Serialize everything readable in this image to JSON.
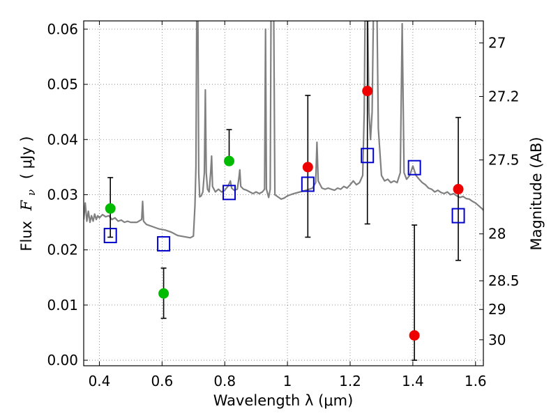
{
  "chart_data": {
    "type": "scatter",
    "xlabel": "Wavelength  λ (μm)",
    "ylabel_prefix": "Flux",
    "ylabel_symbol": "F",
    "ylabel_subscript": "ν",
    "ylabel_unit": "( μJy )",
    "y2label": "Magnitude (AB)",
    "xlim": [
      0.35,
      1.625
    ],
    "ylim": [
      -0.001,
      0.0615
    ],
    "grid": true,
    "xticks": [
      {
        "value": 0.4,
        "label": "0.4"
      },
      {
        "value": 0.6,
        "label": "0.6"
      },
      {
        "value": 0.8,
        "label": "0.8"
      },
      {
        "value": 1.0,
        "label": "1"
      },
      {
        "value": 1.2,
        "label": "1.2"
      },
      {
        "value": 1.4,
        "label": "1.4"
      },
      {
        "value": 1.6,
        "label": "1.6"
      }
    ],
    "yticks": [
      {
        "value": 0.0,
        "label": "0.00"
      },
      {
        "value": 0.01,
        "label": "0.01"
      },
      {
        "value": 0.02,
        "label": "0.02"
      },
      {
        "value": 0.03,
        "label": "0.03"
      },
      {
        "value": 0.04,
        "label": "0.04"
      },
      {
        "value": 0.05,
        "label": "0.05"
      },
      {
        "value": 0.06,
        "label": "0.06"
      }
    ],
    "y2ticks": [
      {
        "flux": 0.0575,
        "label": "27"
      },
      {
        "flux": 0.0478,
        "label": "27.2"
      },
      {
        "flux": 0.0363,
        "label": "27.5"
      },
      {
        "flux": 0.0229,
        "label": "28"
      },
      {
        "flux": 0.0144,
        "label": "28.5"
      },
      {
        "flux": 0.0092,
        "label": "29"
      },
      {
        "flux": 0.0037,
        "label": "30"
      }
    ],
    "series": [
      {
        "name": "detections (green)",
        "color": "#00bb00",
        "points": [
          {
            "x": 0.435,
            "y": 0.0275,
            "err_lo": 0.0052,
            "err_hi": 0.0056
          },
          {
            "x": 0.605,
            "y": 0.0121,
            "err_lo": 0.0045,
            "err_hi": 0.0046
          },
          {
            "x": 0.814,
            "y": 0.0361,
            "err_lo": 0.0,
            "err_hi": 0.0057
          }
        ]
      },
      {
        "name": "measurements (red)",
        "color": "#ee0000",
        "points": [
          {
            "x": 1.065,
            "y": 0.035,
            "err_lo": 0.0127,
            "err_hi": 0.013
          },
          {
            "x": 1.255,
            "y": 0.0488,
            "err_lo": 0.0241,
            "err_hi": 0.0127
          },
          {
            "x": 1.405,
            "y": 0.0045,
            "err_lo": 0.0045,
            "err_hi": 0.02
          },
          {
            "x": 1.545,
            "y": 0.031,
            "err_lo": 0.0129,
            "err_hi": 0.013
          }
        ]
      },
      {
        "name": "model photometry (blue squares)",
        "color": "#0000cc",
        "points": [
          {
            "x": 0.435,
            "y": 0.0226
          },
          {
            "x": 0.605,
            "y": 0.0211
          },
          {
            "x": 0.814,
            "y": 0.0304
          },
          {
            "x": 1.065,
            "y": 0.0319
          },
          {
            "x": 1.255,
            "y": 0.0371
          },
          {
            "x": 1.405,
            "y": 0.0349
          },
          {
            "x": 1.545,
            "y": 0.0262
          }
        ]
      }
    ],
    "spectrum": {
      "name": "model spectrum",
      "color": "#808080",
      "points": [
        [
          0.35,
          0.0255
        ],
        [
          0.355,
          0.0285
        ],
        [
          0.36,
          0.0252
        ],
        [
          0.365,
          0.027
        ],
        [
          0.37,
          0.025
        ],
        [
          0.375,
          0.0262
        ],
        [
          0.38,
          0.0252
        ],
        [
          0.385,
          0.0265
        ],
        [
          0.39,
          0.0255
        ],
        [
          0.395,
          0.0262
        ],
        [
          0.4,
          0.0258
        ],
        [
          0.41,
          0.0264
        ],
        [
          0.42,
          0.026
        ],
        [
          0.43,
          0.0262
        ],
        [
          0.44,
          0.0255
        ],
        [
          0.45,
          0.0258
        ],
        [
          0.46,
          0.0252
        ],
        [
          0.47,
          0.0254
        ],
        [
          0.48,
          0.025
        ],
        [
          0.49,
          0.0252
        ],
        [
          0.5,
          0.025
        ],
        [
          0.52,
          0.025
        ],
        [
          0.535,
          0.0255
        ],
        [
          0.538,
          0.0288
        ],
        [
          0.541,
          0.0252
        ],
        [
          0.55,
          0.0246
        ],
        [
          0.57,
          0.0242
        ],
        [
          0.59,
          0.0238
        ],
        [
          0.61,
          0.0236
        ],
        [
          0.63,
          0.0232
        ],
        [
          0.65,
          0.0226
        ],
        [
          0.67,
          0.0224
        ],
        [
          0.69,
          0.0222
        ],
        [
          0.7,
          0.0225
        ],
        [
          0.705,
          0.028
        ],
        [
          0.708,
          0.035
        ],
        [
          0.711,
          0.066
        ],
        [
          0.714,
          0.066
        ],
        [
          0.717,
          0.034
        ],
        [
          0.72,
          0.0296
        ],
        [
          0.725,
          0.0298
        ],
        [
          0.73,
          0.0305
        ],
        [
          0.735,
          0.034
        ],
        [
          0.738,
          0.049
        ],
        [
          0.741,
          0.034
        ],
        [
          0.745,
          0.031
        ],
        [
          0.75,
          0.0305
        ],
        [
          0.755,
          0.034
        ],
        [
          0.758,
          0.037
        ],
        [
          0.761,
          0.0315
        ],
        [
          0.77,
          0.0305
        ],
        [
          0.78,
          0.031
        ],
        [
          0.79,
          0.0305
        ],
        [
          0.8,
          0.0308
        ],
        [
          0.81,
          0.0315
        ],
        [
          0.818,
          0.0325
        ],
        [
          0.822,
          0.0312
        ],
        [
          0.83,
          0.0308
        ],
        [
          0.84,
          0.031
        ],
        [
          0.845,
          0.033
        ],
        [
          0.848,
          0.0345
        ],
        [
          0.851,
          0.0315
        ],
        [
          0.86,
          0.031
        ],
        [
          0.87,
          0.0308
        ],
        [
          0.88,
          0.0305
        ],
        [
          0.89,
          0.0302
        ],
        [
          0.9,
          0.0305
        ],
        [
          0.91,
          0.0302
        ],
        [
          0.92,
          0.0305
        ],
        [
          0.927,
          0.031
        ],
        [
          0.93,
          0.06
        ],
        [
          0.933,
          0.031
        ],
        [
          0.94,
          0.0295
        ],
        [
          0.945,
          0.031
        ],
        [
          0.948,
          0.066
        ],
        [
          0.953,
          0.066
        ],
        [
          0.956,
          0.066
        ],
        [
          0.96,
          0.03
        ],
        [
          0.97,
          0.0296
        ],
        [
          0.98,
          0.0292
        ],
        [
          0.99,
          0.0294
        ],
        [
          1.0,
          0.0298
        ],
        [
          1.02,
          0.0302
        ],
        [
          1.04,
          0.0305
        ],
        [
          1.06,
          0.0308
        ],
        [
          1.08,
          0.0312
        ],
        [
          1.09,
          0.0322
        ],
        [
          1.094,
          0.0395
        ],
        [
          1.098,
          0.0325
        ],
        [
          1.11,
          0.0312
        ],
        [
          1.12,
          0.031
        ],
        [
          1.13,
          0.0312
        ],
        [
          1.14,
          0.031
        ],
        [
          1.15,
          0.0308
        ],
        [
          1.16,
          0.0312
        ],
        [
          1.17,
          0.031
        ],
        [
          1.18,
          0.0315
        ],
        [
          1.19,
          0.0312
        ],
        [
          1.2,
          0.0318
        ],
        [
          1.21,
          0.0325
        ],
        [
          1.22,
          0.0318
        ],
        [
          1.23,
          0.0322
        ],
        [
          1.24,
          0.0335
        ],
        [
          1.245,
          0.045
        ],
        [
          1.248,
          0.066
        ],
        [
          1.255,
          0.066
        ],
        [
          1.26,
          0.045
        ],
        [
          1.265,
          0.04
        ],
        [
          1.27,
          0.045
        ],
        [
          1.275,
          0.066
        ],
        [
          1.285,
          0.066
        ],
        [
          1.29,
          0.042
        ],
        [
          1.3,
          0.0335
        ],
        [
          1.31,
          0.0325
        ],
        [
          1.32,
          0.0328
        ],
        [
          1.33,
          0.0322
        ],
        [
          1.34,
          0.0325
        ],
        [
          1.35,
          0.0322
        ],
        [
          1.36,
          0.034
        ],
        [
          1.366,
          0.061
        ],
        [
          1.372,
          0.034
        ],
        [
          1.38,
          0.0328
        ],
        [
          1.39,
          0.0335
        ],
        [
          1.4,
          0.0352
        ],
        [
          1.41,
          0.0335
        ],
        [
          1.42,
          0.0328
        ],
        [
          1.43,
          0.0322
        ],
        [
          1.44,
          0.0318
        ],
        [
          1.45,
          0.0312
        ],
        [
          1.46,
          0.031
        ],
        [
          1.47,
          0.0305
        ],
        [
          1.48,
          0.0308
        ],
        [
          1.49,
          0.0304
        ],
        [
          1.5,
          0.0302
        ],
        [
          1.51,
          0.0305
        ],
        [
          1.52,
          0.03
        ],
        [
          1.53,
          0.0302
        ],
        [
          1.54,
          0.0298
        ],
        [
          1.55,
          0.0295
        ],
        [
          1.56,
          0.0297
        ],
        [
          1.57,
          0.0293
        ],
        [
          1.58,
          0.0292
        ],
        [
          1.59,
          0.0288
        ],
        [
          1.6,
          0.0285
        ],
        [
          1.61,
          0.028
        ],
        [
          1.62,
          0.0275
        ],
        [
          1.625,
          0.0272
        ]
      ]
    }
  }
}
